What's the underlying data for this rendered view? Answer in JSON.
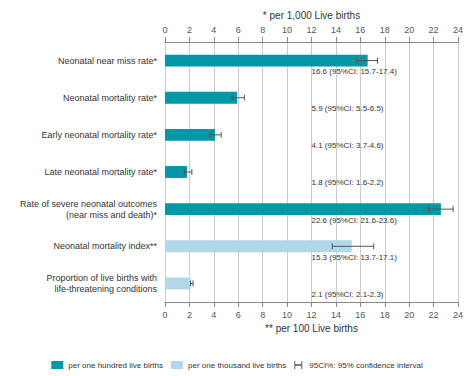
{
  "chart_data": {
    "type": "bar",
    "orientation": "horizontal",
    "categories": [
      "Neonatal near miss rate*",
      "Neonatal mortality rate*",
      "Early neonatal mortality rate*",
      "Late neonatal mortality rate*",
      "Rate of severe neonatal outcomes\n(near miss and death)*",
      "Neonatal mortality index**",
      "Proportion of live births with\nlife-threatening conditions"
    ],
    "series": [
      {
        "name": "per one hundred live births",
        "color": "#0097A7",
        "values": [
          16.6,
          5.9,
          4.1,
          1.8,
          22.6,
          null,
          null
        ]
      },
      {
        "name": "per one thousand live births",
        "color": "#B0D8E8",
        "values": [
          null,
          null,
          null,
          null,
          null,
          15.3,
          2.1
        ]
      }
    ],
    "error_bars": {
      "name": "95CI%: 95% confidence interval",
      "color": "#555555",
      "ci_low": [
        15.7,
        5.5,
        3.7,
        1.6,
        21.6,
        13.7,
        2.1
      ],
      "ci_high": [
        17.4,
        6.5,
        4.6,
        2.2,
        23.6,
        17.1,
        2.3
      ]
    },
    "annotations": [
      "16.6 (95%CI: 15.7-17.4)",
      "5.9 (95%CI: 5.5-6.5)",
      "4.1 (95%CI: 3.7-4.6)",
      "1.8 (95%CI: 1.6-2.2)",
      "22.6 (95%CI: 21.6-23.6)",
      "15.3 (95%CI: 13.7-17.1)",
      "2.1 (95%CI: 2.1-2.3)"
    ],
    "xlabel": "** per 100 Live births",
    "x2label": "* per 1,000 Live births",
    "xlim": [
      0,
      24
    ],
    "xticks": [
      0,
      2,
      4,
      6,
      8,
      10,
      12,
      14,
      16,
      18,
      20,
      22,
      24
    ],
    "x2lim": [
      0,
      24
    ],
    "x2ticks": [
      0,
      2,
      4,
      6,
      8,
      10,
      12,
      14,
      16,
      18,
      20,
      22,
      24
    ],
    "grid": true,
    "legend": "bottom"
  }
}
